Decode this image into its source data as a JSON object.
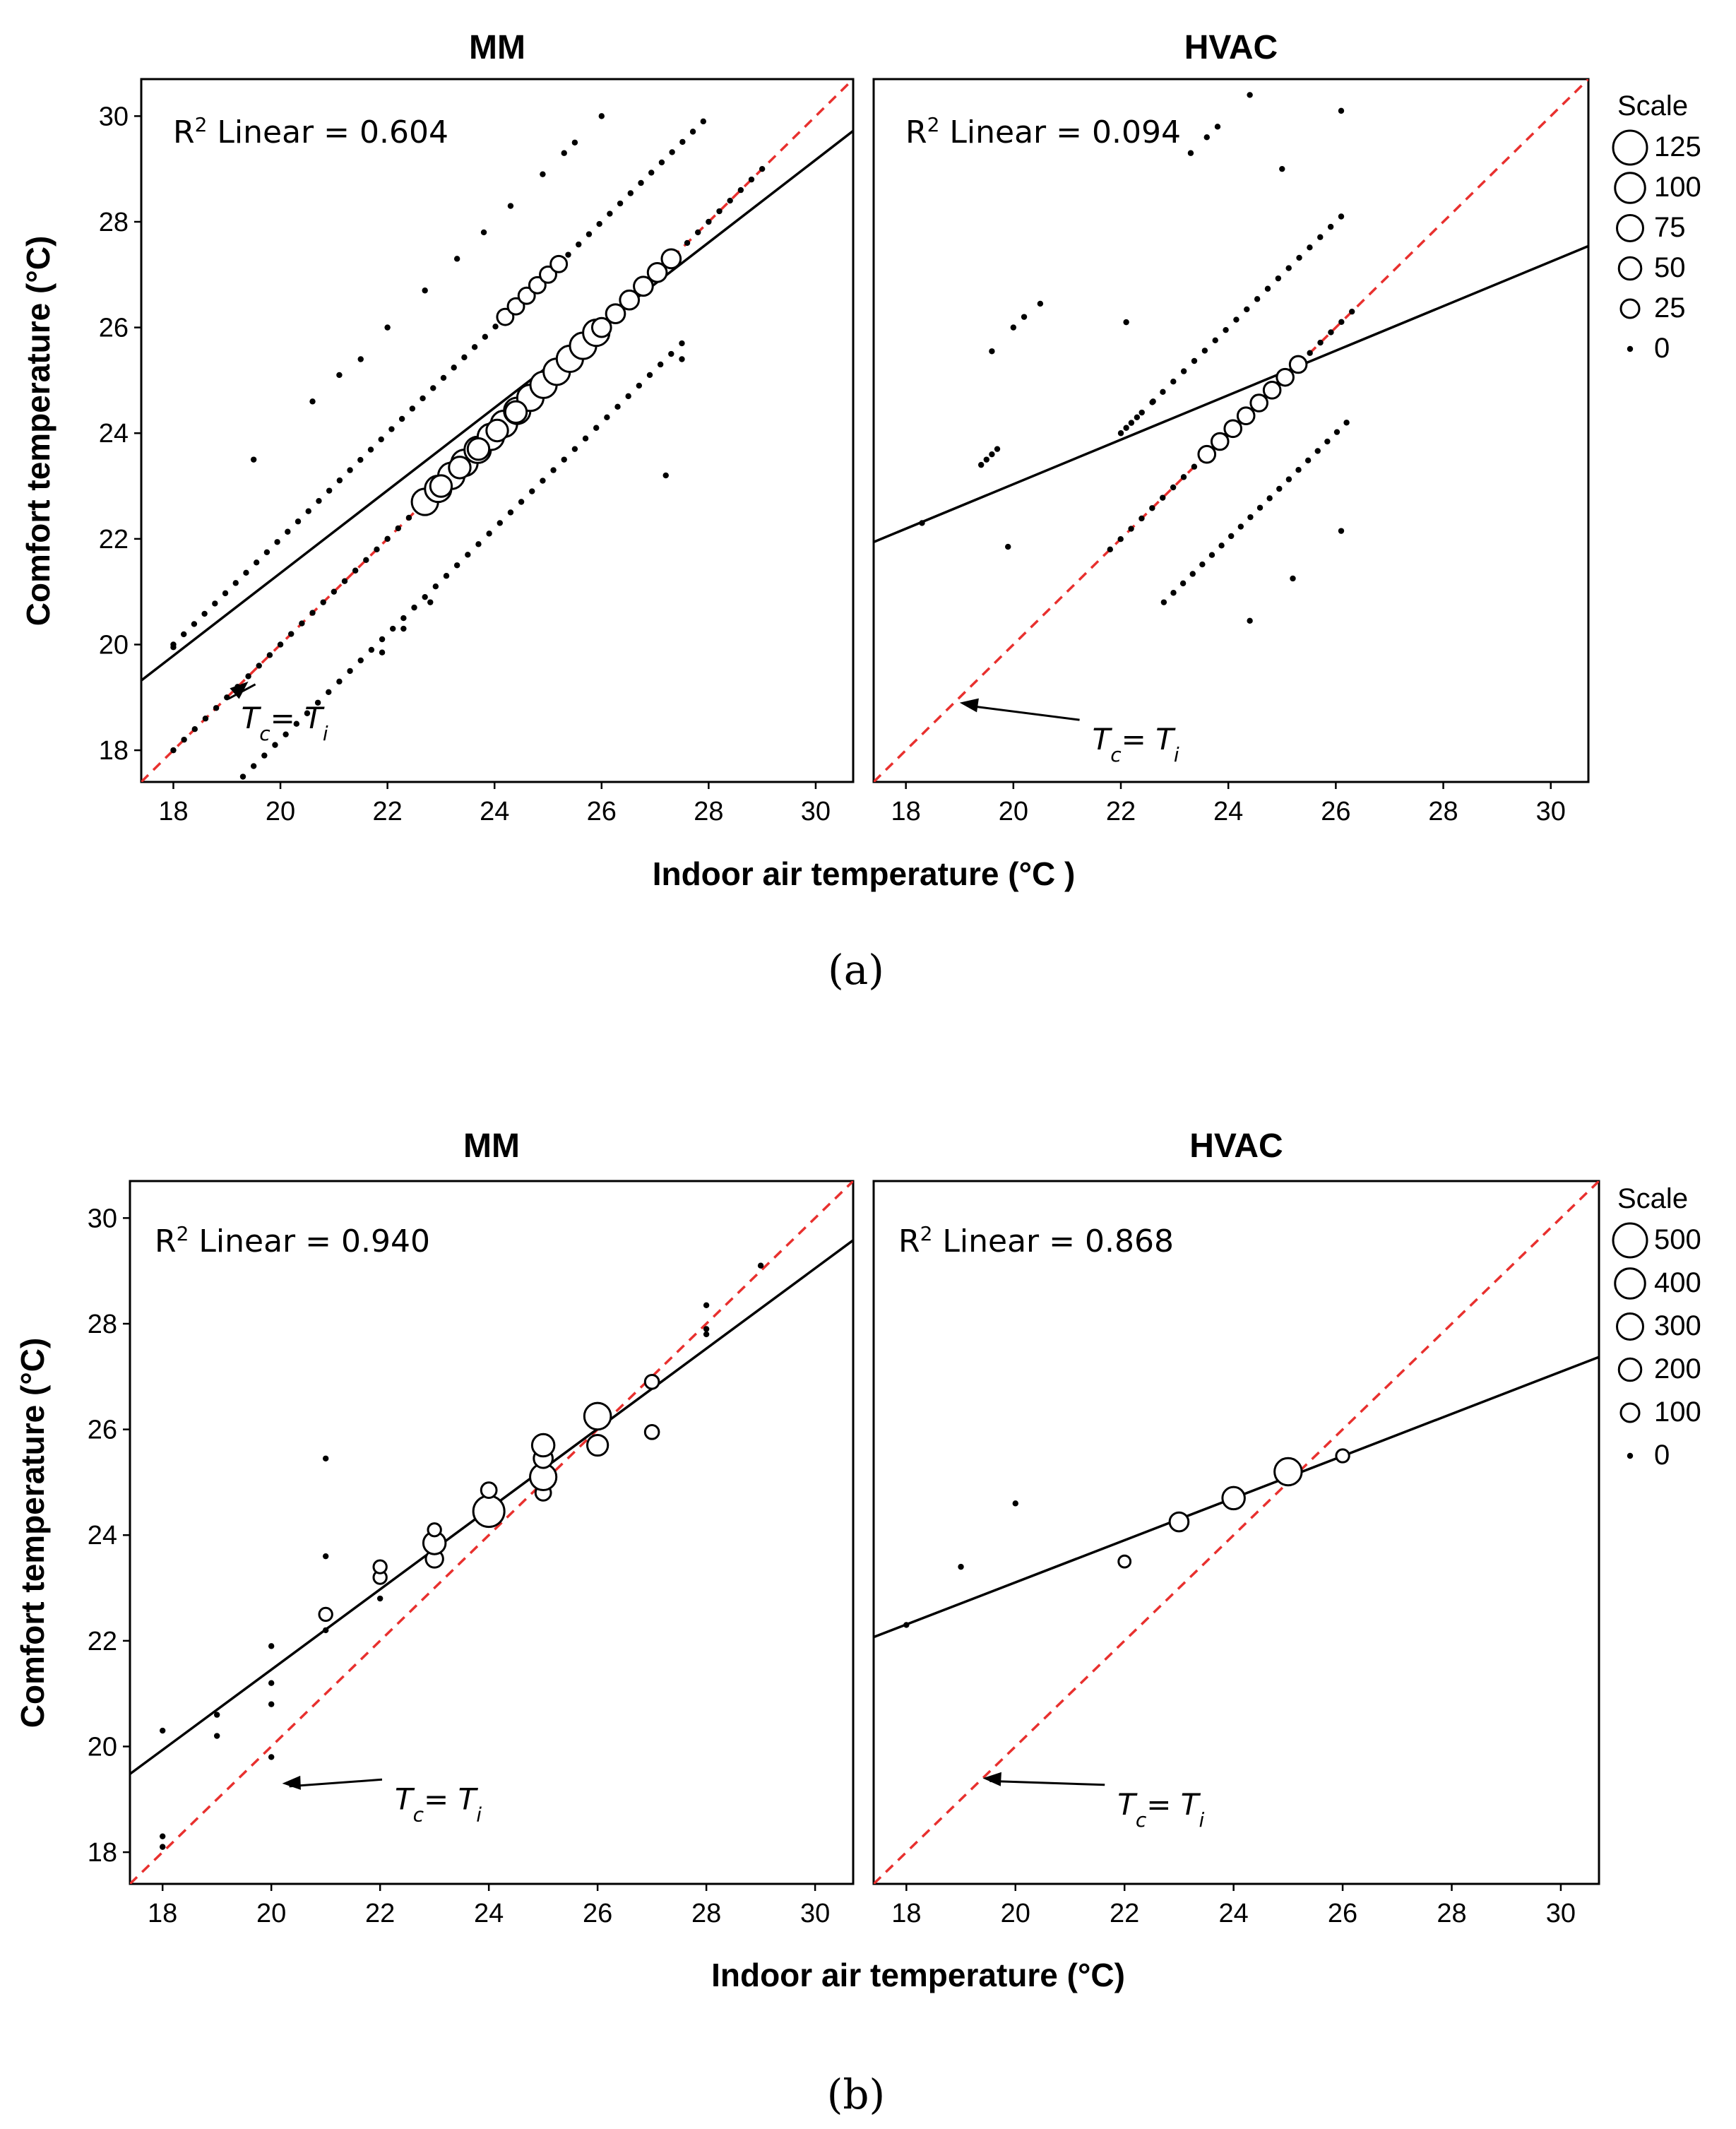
{
  "figure": {
    "sub_labels": [
      "(a)",
      "(b)"
    ],
    "annotation": {
      "main": "T",
      "sub_c": "c",
      "eq": "= ",
      "sub_i": "i"
    }
  },
  "chart_data": [
    {
      "type": "scatter",
      "figure": "a",
      "panel": "MM",
      "title": "MM",
      "xlabel": "Indoor air temperature (°C )",
      "ylabel": "Comfort temperature (°C)",
      "xlim": [
        17.4,
        30.7
      ],
      "ylim": [
        17.4,
        30.7
      ],
      "xticks": [
        18,
        20,
        22,
        24,
        26,
        28,
        30
      ],
      "yticks": [
        18,
        20,
        22,
        24,
        26,
        28,
        30
      ],
      "r2_label": "R² Linear = 0.604",
      "regression": {
        "x": [
          17.4,
          30.7
        ],
        "y": [
          19.32,
          29.72
        ]
      },
      "reference_line": {
        "label": "Tc = Ti",
        "style": "dashed",
        "color": "#e8302e"
      },
      "annotation_arrow": {
        "text_x": 19.4,
        "text_y": 18.6,
        "head_x": 19.4,
        "head_y": 19.3
      },
      "runs": [
        {
          "x0": 18.0,
          "x1": 29.0,
          "n": 56,
          "off": 0,
          "size": 0
        },
        {
          "x0": 22.7,
          "x1": 25.9,
          "n": 14,
          "off": 0,
          "size": 80
        },
        {
          "x0": 23.0,
          "x1": 24.4,
          "n": 5,
          "off": 0,
          "size": 45
        },
        {
          "x0": 26.0,
          "x1": 27.3,
          "n": 6,
          "off": 0,
          "size": 30
        },
        {
          "x0": 18.0,
          "x1": 27.9,
          "n": 52,
          "off": 2.0,
          "size": 0
        },
        {
          "x0": 24.2,
          "x1": 25.2,
          "n": 6,
          "off": 2.0,
          "size": 18
        },
        {
          "x0": 18.9,
          "x1": 27.5,
          "n": 44,
          "off": -1.8,
          "size": 0
        }
      ],
      "points": [
        {
          "x": 18.0,
          "y": 19.95,
          "size": 0
        },
        {
          "x": 19.5,
          "y": 23.5,
          "size": 0
        },
        {
          "x": 20.6,
          "y": 24.6,
          "size": 0
        },
        {
          "x": 21.1,
          "y": 25.1,
          "size": 0
        },
        {
          "x": 21.5,
          "y": 25.4,
          "size": 0
        },
        {
          "x": 22.0,
          "y": 26.0,
          "size": 0
        },
        {
          "x": 22.7,
          "y": 26.7,
          "size": 0
        },
        {
          "x": 23.3,
          "y": 27.3,
          "size": 0
        },
        {
          "x": 23.8,
          "y": 27.8,
          "size": 0
        },
        {
          "x": 24.3,
          "y": 28.3,
          "size": 0
        },
        {
          "x": 24.9,
          "y": 28.9,
          "size": 0
        },
        {
          "x": 25.3,
          "y": 29.3,
          "size": 0
        },
        {
          "x": 25.5,
          "y": 29.5,
          "size": 0
        },
        {
          "x": 26.0,
          "y": 30.0,
          "size": 0
        },
        {
          "x": 21.9,
          "y": 19.85,
          "size": 0
        },
        {
          "x": 22.3,
          "y": 20.3,
          "size": 0
        },
        {
          "x": 22.8,
          "y": 20.8,
          "size": 0
        },
        {
          "x": 27.2,
          "y": 23.2,
          "size": 0
        },
        {
          "x": 27.5,
          "y": 25.4,
          "size": 0
        }
      ],
      "legend": {
        "title": "Scale",
        "items": [
          "125",
          "100",
          "75",
          "50",
          "25",
          "0"
        ]
      }
    },
    {
      "type": "scatter",
      "figure": "a",
      "panel": "HVAC",
      "title": "HVAC",
      "xlim": [
        17.4,
        30.7
      ],
      "ylim": [
        17.4,
        30.7
      ],
      "xticks": [
        18,
        20,
        22,
        24,
        26,
        28,
        30
      ],
      "yticks": [
        18,
        20,
        22,
        24,
        26,
        28,
        30
      ],
      "r2_label": "R² Linear = 0.094",
      "regression": {
        "x": [
          17.4,
          30.7
        ],
        "y": [
          21.94,
          27.54
        ]
      },
      "reference_line": {
        "label": "Tc = Ti",
        "style": "dashed",
        "color": "#e8302e"
      },
      "annotation_arrow": {
        "text_x": 21.6,
        "text_y": 18.2,
        "head_x": 19.0,
        "head_y": 18.9
      },
      "runs": [
        {
          "x0": 21.8,
          "x1": 26.3,
          "n": 24,
          "off": 0,
          "size": 0
        },
        {
          "x0": 23.6,
          "x1": 25.3,
          "n": 8,
          "off": 0,
          "size": 20
        },
        {
          "x0": 22.0,
          "x1": 26.1,
          "n": 22,
          "off": 2.0,
          "size": 0
        },
        {
          "x0": 22.8,
          "x1": 26.2,
          "n": 20,
          "off": -2.0,
          "size": 0
        }
      ],
      "points": [
        {
          "x": 18.3,
          "y": 22.3,
          "size": 0
        },
        {
          "x": 19.4,
          "y": 23.4,
          "size": 0
        },
        {
          "x": 19.5,
          "y": 23.5,
          "size": 0
        },
        {
          "x": 19.6,
          "y": 23.6,
          "size": 0
        },
        {
          "x": 19.7,
          "y": 23.7,
          "size": 0
        },
        {
          "x": 19.6,
          "y": 25.55,
          "size": 0
        },
        {
          "x": 19.9,
          "y": 21.85,
          "size": 0
        },
        {
          "x": 20.0,
          "y": 26.0,
          "size": 0
        },
        {
          "x": 20.2,
          "y": 26.2,
          "size": 0
        },
        {
          "x": 20.5,
          "y": 26.45,
          "size": 0
        },
        {
          "x": 22.1,
          "y": 26.1,
          "size": 0
        },
        {
          "x": 22.1,
          "y": 24.1,
          "size": 0
        },
        {
          "x": 22.3,
          "y": 24.3,
          "size": 0
        },
        {
          "x": 22.6,
          "y": 24.6,
          "size": 0
        },
        {
          "x": 23.3,
          "y": 29.3,
          "size": 0
        },
        {
          "x": 23.6,
          "y": 29.6,
          "size": 0
        },
        {
          "x": 23.8,
          "y": 29.8,
          "size": 0
        },
        {
          "x": 24.4,
          "y": 30.4,
          "size": 0
        },
        {
          "x": 24.4,
          "y": 20.45,
          "size": 0
        },
        {
          "x": 25.2,
          "y": 21.25,
          "size": 0
        },
        {
          "x": 26.1,
          "y": 22.15,
          "size": 0
        },
        {
          "x": 26.1,
          "y": 30.1,
          "size": 0
        },
        {
          "x": 25.0,
          "y": 29.0,
          "size": 0
        }
      ],
      "legend": {
        "title": "Scale",
        "items": [
          "125",
          "100",
          "75",
          "50",
          "25",
          "0"
        ]
      }
    },
    {
      "type": "scatter",
      "figure": "b",
      "panel": "MM",
      "title": "MM",
      "xlabel": "Indoor air temperature (°C)",
      "ylabel": "Comfort temperature (°C)",
      "xlim": [
        17.4,
        30.7
      ],
      "ylim": [
        17.4,
        30.7
      ],
      "xticks": [
        18,
        20,
        22,
        24,
        26,
        28,
        30
      ],
      "yticks": [
        18,
        20,
        22,
        24,
        26,
        28,
        30
      ],
      "r2_label": "R² Linear = 0.940",
      "regression": {
        "x": [
          17.4,
          30.7
        ],
        "y": [
          19.48,
          29.58
        ]
      },
      "reference_line": {
        "label": "Tc = Ti",
        "style": "dashed",
        "color": "#e8302e"
      },
      "annotation_arrow": {
        "text_x": 22.4,
        "text_y": 19.0,
        "head_x": 20.2,
        "head_y": 19.3
      },
      "runs": [],
      "points": [
        {
          "x": 18.0,
          "y": 18.1,
          "size": 0
        },
        {
          "x": 18.0,
          "y": 18.3,
          "size": 0
        },
        {
          "x": 18.0,
          "y": 20.3,
          "size": 0
        },
        {
          "x": 19.0,
          "y": 20.2,
          "size": 0
        },
        {
          "x": 19.0,
          "y": 20.6,
          "size": 0
        },
        {
          "x": 20.0,
          "y": 19.8,
          "size": 0
        },
        {
          "x": 20.0,
          "y": 20.8,
          "size": 0
        },
        {
          "x": 20.0,
          "y": 21.2,
          "size": 0
        },
        {
          "x": 20.0,
          "y": 21.9,
          "size": 0
        },
        {
          "x": 21.0,
          "y": 22.2,
          "size": 0
        },
        {
          "x": 21.0,
          "y": 22.5,
          "size": 30
        },
        {
          "x": 21.0,
          "y": 23.6,
          "size": 0
        },
        {
          "x": 21.0,
          "y": 25.45,
          "size": 0
        },
        {
          "x": 22.0,
          "y": 22.8,
          "size": 0
        },
        {
          "x": 22.0,
          "y": 23.2,
          "size": 30
        },
        {
          "x": 22.0,
          "y": 23.4,
          "size": 30
        },
        {
          "x": 23.0,
          "y": 23.55,
          "size": 90
        },
        {
          "x": 23.0,
          "y": 23.85,
          "size": 200
        },
        {
          "x": 23.0,
          "y": 24.1,
          "size": 30
        },
        {
          "x": 24.0,
          "y": 24.3,
          "size": 30
        },
        {
          "x": 24.0,
          "y": 24.45,
          "size": 500
        },
        {
          "x": 24.0,
          "y": 24.85,
          "size": 60
        },
        {
          "x": 25.0,
          "y": 24.8,
          "size": 60
        },
        {
          "x": 25.0,
          "y": 25.1,
          "size": 320
        },
        {
          "x": 25.0,
          "y": 25.45,
          "size": 120
        },
        {
          "x": 25.0,
          "y": 25.7,
          "size": 200
        },
        {
          "x": 26.0,
          "y": 25.7,
          "size": 160
        },
        {
          "x": 26.0,
          "y": 26.25,
          "size": 330
        },
        {
          "x": 27.0,
          "y": 25.95,
          "size": 40
        },
        {
          "x": 27.0,
          "y": 26.9,
          "size": 40
        },
        {
          "x": 28.0,
          "y": 27.8,
          "size": 0
        },
        {
          "x": 28.0,
          "y": 27.9,
          "size": 0
        },
        {
          "x": 28.0,
          "y": 28.35,
          "size": 0
        },
        {
          "x": 29.0,
          "y": 29.1,
          "size": 0
        }
      ],
      "legend": {
        "title": "Scale",
        "items": [
          "500",
          "400",
          "300",
          "200",
          "100",
          "0"
        ]
      }
    },
    {
      "type": "scatter",
      "figure": "b",
      "panel": "HVAC",
      "title": "HVAC",
      "xlim": [
        17.4,
        30.7
      ],
      "ylim": [
        17.4,
        30.7
      ],
      "xticks": [
        18,
        20,
        22,
        24,
        26,
        28,
        30
      ],
      "yticks": [
        18,
        20,
        22,
        24,
        26,
        28,
        30
      ],
      "r2_label": "R² Linear = 0.868",
      "regression": {
        "x": [
          17.4,
          30.7
        ],
        "y": [
          22.07,
          27.37
        ]
      },
      "reference_line": {
        "label": "Tc = Ti",
        "style": "dashed",
        "color": "#e8302e"
      },
      "annotation_arrow": {
        "text_x": 22.0,
        "text_y": 18.9,
        "head_x": 19.4,
        "head_y": 19.4
      },
      "runs": [],
      "points": [
        {
          "x": 18.0,
          "y": 22.3,
          "size": 0
        },
        {
          "x": 19.0,
          "y": 23.4,
          "size": 0
        },
        {
          "x": 20.0,
          "y": 24.6,
          "size": 0
        },
        {
          "x": 22.0,
          "y": 23.5,
          "size": 20
        },
        {
          "x": 23.0,
          "y": 24.25,
          "size": 120
        },
        {
          "x": 24.0,
          "y": 24.7,
          "size": 200
        },
        {
          "x": 25.0,
          "y": 25.2,
          "size": 350
        },
        {
          "x": 26.0,
          "y": 25.5,
          "size": 30
        }
      ],
      "legend": {
        "title": "Scale",
        "items": [
          "500",
          "400",
          "300",
          "200",
          "100",
          "0"
        ]
      }
    }
  ]
}
